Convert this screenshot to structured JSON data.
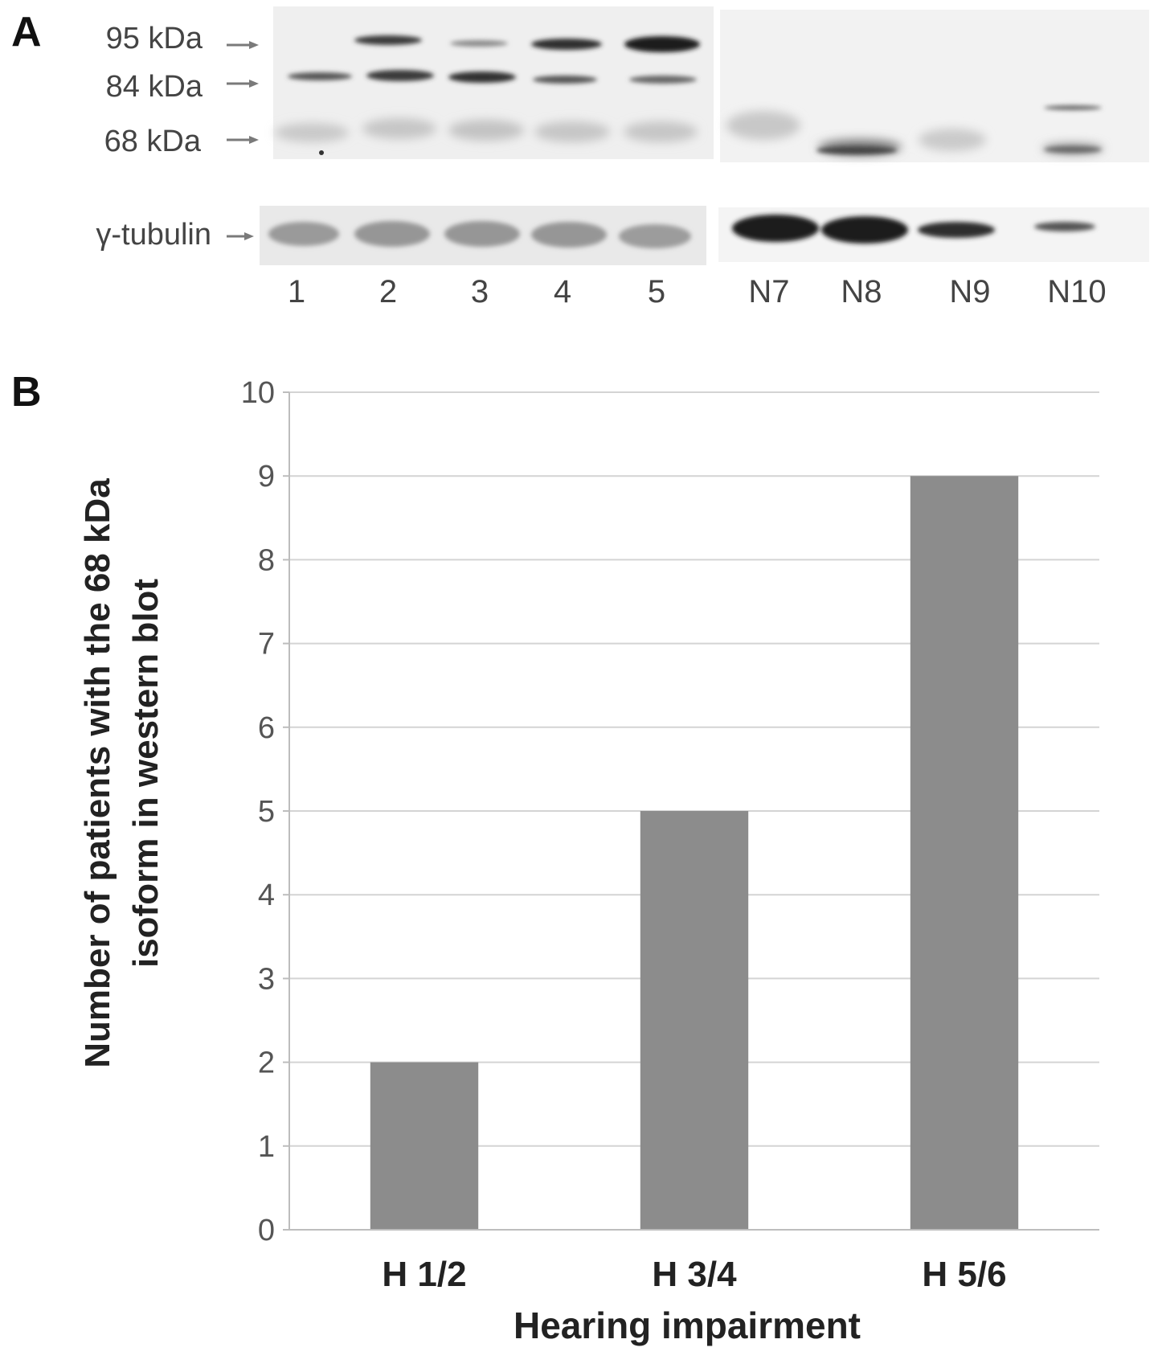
{
  "panels": {
    "a_label": "A",
    "b_label": "B"
  },
  "blot": {
    "markers": [
      "95 kDa",
      "84 kDa",
      "68 kDa"
    ],
    "loading_control": "γ-tubulin",
    "patient_lanes": [
      "1",
      "2",
      "3",
      "4",
      "5"
    ],
    "normal_lanes": [
      "N7",
      "N8",
      "N9",
      "N10"
    ],
    "colors": {
      "gel_background": "#eeeeee",
      "band": "#2a2a2a",
      "marker_arrow": "#7a7a7a"
    }
  },
  "chart_data": {
    "type": "bar",
    "categories": [
      "H 1/2",
      "H 3/4",
      "H 5/6"
    ],
    "values": [
      2,
      5,
      9
    ],
    "xlabel": "Hearing impairment",
    "ylabel_lines": [
      "Number of patients with the 68 kDa",
      "isoform in western blot"
    ],
    "ylim": [
      0,
      10
    ],
    "yticks": [
      "0",
      "1",
      "2",
      "3",
      "4",
      "5",
      "6",
      "7",
      "8",
      "9",
      "10"
    ],
    "grid": true,
    "colors": {
      "bar": "#8c8c8c",
      "grid": "#d4d4d4",
      "axis": "#bdbdbd"
    }
  }
}
